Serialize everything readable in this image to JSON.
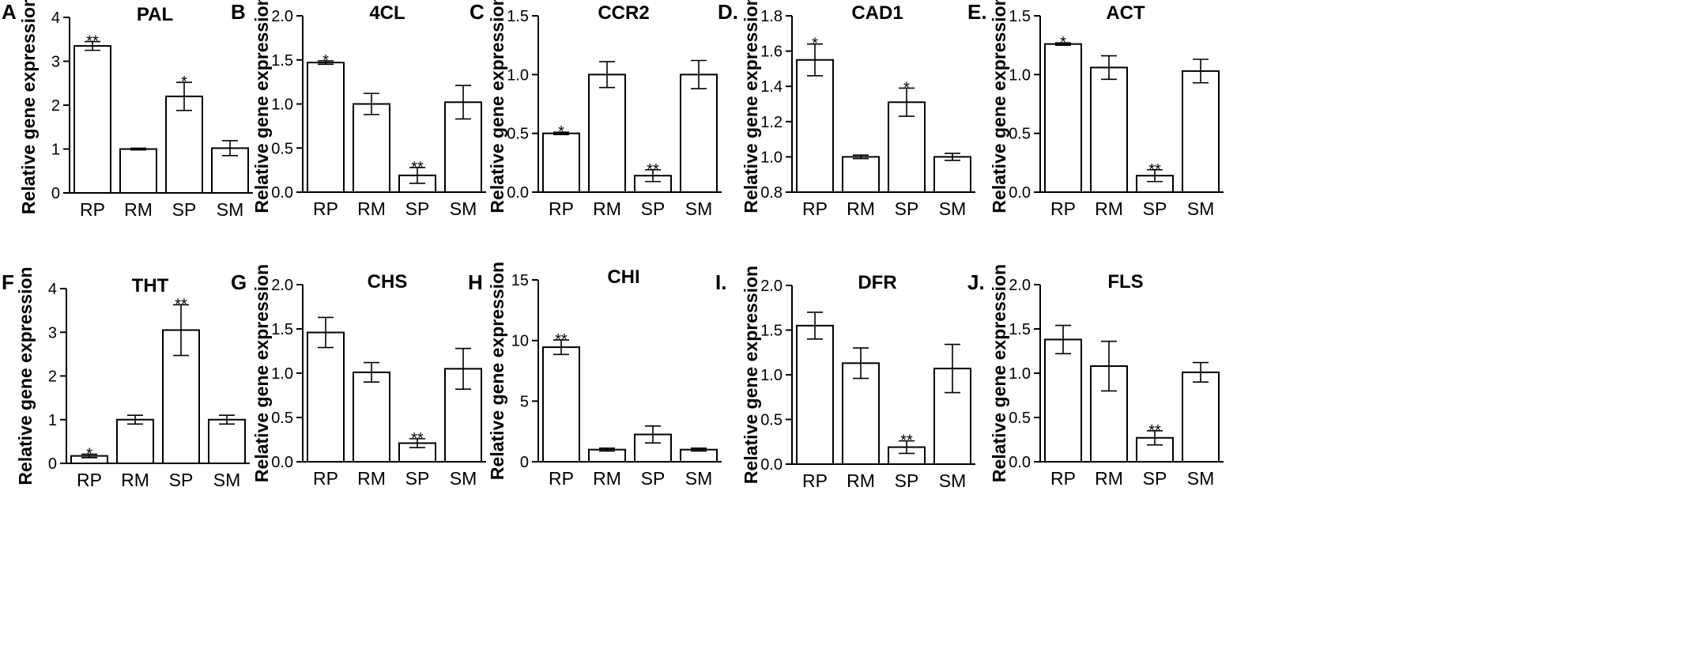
{
  "chart_data": [
    {
      "panel": "A",
      "type": "bar",
      "title": "PAL",
      "ylabel": "Relative gene expression",
      "categories": [
        "RP",
        "RM",
        "SP",
        "SM"
      ],
      "values": [
        3.35,
        1.0,
        2.2,
        1.02
      ],
      "errors": [
        0.1,
        0.02,
        0.32,
        0.17
      ],
      "significance": [
        "**",
        "",
        "*",
        ""
      ],
      "ylim": [
        0,
        4
      ],
      "yticks": [
        "0",
        "1",
        "2",
        "3",
        "4"
      ]
    },
    {
      "panel": "B",
      "type": "bar",
      "title": "4CL",
      "ylabel": "Relative gene expression",
      "categories": [
        "RP",
        "RM",
        "SP",
        "SM"
      ],
      "values": [
        1.47,
        1.0,
        0.19,
        1.02
      ],
      "errors": [
        0.02,
        0.12,
        0.09,
        0.19
      ],
      "significance": [
        "*",
        "",
        "**",
        ""
      ],
      "ylim": [
        0,
        2
      ],
      "yticks": [
        "0.0",
        "0.5",
        "1.0",
        "1.5",
        "2.0"
      ]
    },
    {
      "panel": "C",
      "type": "bar",
      "title": "CCR2",
      "ylabel": "Relative gene expression",
      "categories": [
        "RP",
        "RM",
        "SP",
        "SM"
      ],
      "values": [
        0.5,
        1.0,
        0.14,
        1.0
      ],
      "errors": [
        0.01,
        0.11,
        0.05,
        0.12
      ],
      "significance": [
        "*",
        "",
        "**",
        ""
      ],
      "ylim": [
        0,
        1.5
      ],
      "yticks": [
        "0.0",
        "0.5",
        "1.0",
        "1.5"
      ]
    },
    {
      "panel": "D.",
      "type": "bar",
      "title": "CAD1",
      "ylabel": "Relative gene expression",
      "categories": [
        "RP",
        "RM",
        "SP",
        "SM"
      ],
      "values": [
        1.55,
        1.0,
        1.31,
        1.0
      ],
      "errors": [
        0.09,
        0.01,
        0.08,
        0.02
      ],
      "significance": [
        "*",
        "",
        "*",
        ""
      ],
      "ylim": [
        0.8,
        1.8
      ],
      "yticks": [
        "0.8",
        "1.0",
        "1.2",
        "1.4",
        "1.6",
        "1.8"
      ]
    },
    {
      "panel": "E.",
      "type": "bar",
      "title": "ACT",
      "ylabel": "Relative gene expression",
      "categories": [
        "RP",
        "RM",
        "SP",
        "SM"
      ],
      "values": [
        1.26,
        1.06,
        0.14,
        1.03
      ],
      "errors": [
        0.01,
        0.1,
        0.05,
        0.1
      ],
      "significance": [
        "*",
        "",
        "**",
        ""
      ],
      "ylim": [
        0,
        1.5
      ],
      "yticks": [
        "0.0",
        "0.5",
        "1.0",
        "1.5"
      ]
    },
    {
      "panel": "F",
      "type": "bar",
      "title": "THT",
      "ylabel": "Relative gene expression",
      "categories": [
        "RP",
        "RM",
        "SP",
        "SM"
      ],
      "values": [
        0.17,
        1.0,
        3.05,
        1.0
      ],
      "errors": [
        0.04,
        0.1,
        0.58,
        0.1
      ],
      "significance": [
        "*",
        "",
        "**",
        ""
      ],
      "ylim": [
        0,
        4
      ],
      "yticks": [
        "0",
        "1",
        "2",
        "3",
        "4"
      ]
    },
    {
      "panel": "G",
      "type": "bar",
      "title": "CHS",
      "ylabel": "Relative gene expression",
      "categories": [
        "RP",
        "RM",
        "SP",
        "SM"
      ],
      "values": [
        1.46,
        1.01,
        0.21,
        1.05
      ],
      "errors": [
        0.17,
        0.11,
        0.05,
        0.23
      ],
      "significance": [
        "",
        "",
        "**",
        ""
      ],
      "ylim": [
        0,
        2
      ],
      "yticks": [
        "0.0",
        "0.5",
        "1.0",
        "1.5",
        "2.0"
      ]
    },
    {
      "panel": "H",
      "type": "bar",
      "title": "CHI",
      "ylabel": "Relative gene expression",
      "categories": [
        "RP",
        "RM",
        "SP",
        "SM"
      ],
      "values": [
        9.45,
        1.0,
        2.25,
        1.0
      ],
      "errors": [
        0.6,
        0.12,
        0.7,
        0.12
      ],
      "significance": [
        "**",
        "",
        "",
        ""
      ],
      "ylim": [
        0,
        15
      ],
      "yticks": [
        "0",
        "5",
        "10",
        "15"
      ]
    },
    {
      "panel": "I.",
      "type": "bar",
      "title": "DFR",
      "ylabel": "Relative gene expression",
      "categories": [
        "RP",
        "RM",
        "SP",
        "SM"
      ],
      "values": [
        1.55,
        1.13,
        0.19,
        1.07
      ],
      "errors": [
        0.15,
        0.17,
        0.07,
        0.27
      ],
      "significance": [
        "",
        "",
        "**",
        ""
      ],
      "ylim": [
        0,
        2
      ],
      "yticks": [
        "0.0",
        "0.5",
        "1.0",
        "1.5",
        "2.0"
      ]
    },
    {
      "panel": "J.",
      "type": "bar",
      "title": "FLS",
      "ylabel": "Relative gene expression",
      "categories": [
        "RP",
        "RM",
        "SP",
        "SM"
      ],
      "values": [
        1.38,
        1.08,
        0.27,
        1.01
      ],
      "errors": [
        0.16,
        0.28,
        0.08,
        0.11
      ],
      "significance": [
        "",
        "",
        "**",
        ""
      ],
      "ylim": [
        0,
        2
      ],
      "yticks": [
        "0.0",
        "0.5",
        "1.0",
        "1.5",
        "2.0"
      ]
    }
  ]
}
